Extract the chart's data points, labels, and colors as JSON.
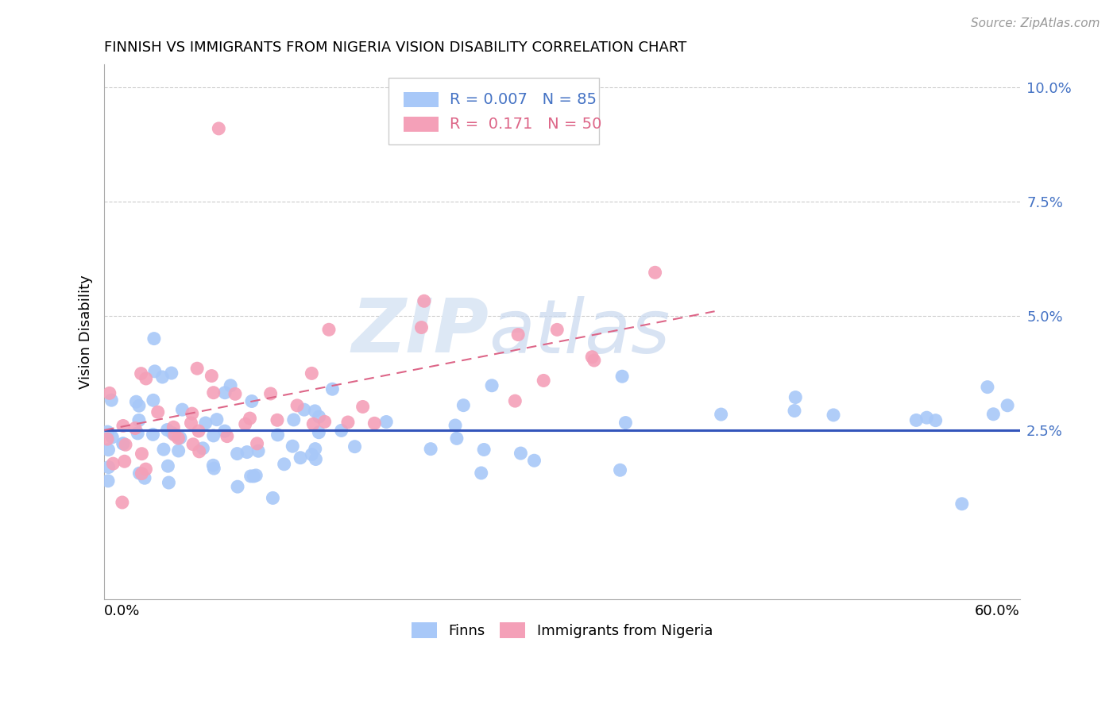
{
  "title": "FINNISH VS IMMIGRANTS FROM NIGERIA VISION DISABILITY CORRELATION CHART",
  "source": "Source: ZipAtlas.com",
  "ylabel": "Vision Disability",
  "xmin": 0.0,
  "xmax": 0.6,
  "ymin": -0.012,
  "ymax": 0.105,
  "finns_color": "#a8c8f8",
  "nigeria_color": "#f4a0b8",
  "finns_line_color": "#3355bb",
  "nigeria_line_color": "#dd6688",
  "background_color": "#ffffff",
  "watermark_color": "#dde8f5",
  "ytick_color": "#4472c4",
  "title_fontsize": 13,
  "axis_fontsize": 13,
  "legend_fontsize": 14
}
